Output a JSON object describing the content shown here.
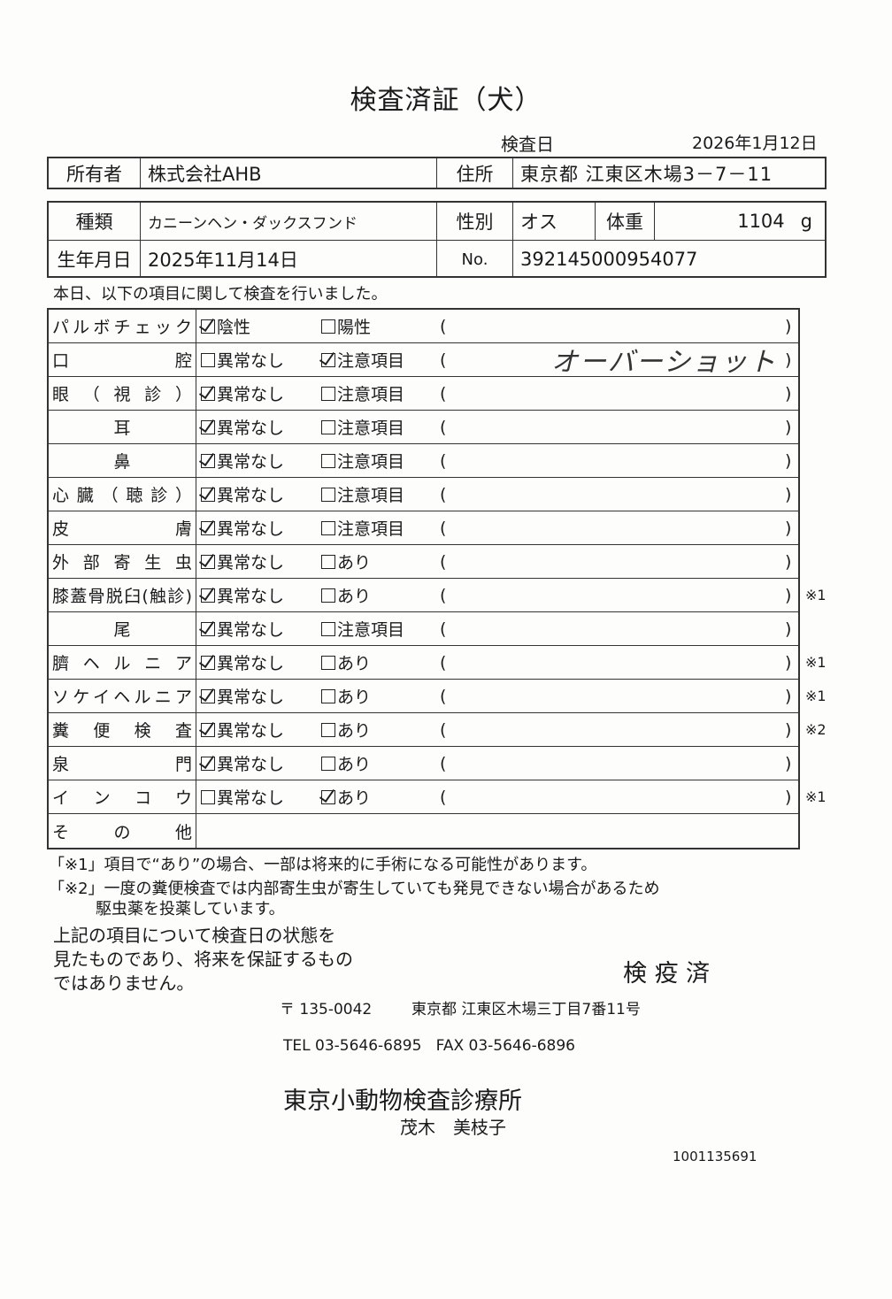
{
  "title": "検査済証（犬）",
  "exam_date_label": "検査日",
  "exam_date": "2026年1月12日",
  "owner": {
    "label": "所有者",
    "value": "株式会社AHB"
  },
  "address": {
    "label": "住所",
    "value": "東京都 江東区木場3－7－11"
  },
  "breed": {
    "label": "種類",
    "value": "カニーンヘン・ダックスフンド"
  },
  "sex": {
    "label": "性別",
    "value": "オス"
  },
  "weight": {
    "label": "体重",
    "value": "1104",
    "unit": "g"
  },
  "birth": {
    "label": "生年月日",
    "value": "2025年11月14日"
  },
  "number": {
    "label": "No.",
    "value": "392145000954077"
  },
  "intro": "本日、以下の項目に関して検査を行いました。",
  "rows": [
    {
      "label": "パルボチェック",
      "opt1": "陰性",
      "opt1_checked": true,
      "opt2": "陽性",
      "opt2_checked": false,
      "note": "",
      "remark": ""
    },
    {
      "label": "口腔",
      "opt1": "異常なし",
      "opt1_checked": false,
      "opt2": "注意項目",
      "opt2_checked": true,
      "note": "オーバーショット",
      "remark": ""
    },
    {
      "label": "眼（視診）",
      "opt1": "異常なし",
      "opt1_checked": true,
      "opt2": "注意項目",
      "opt2_checked": false,
      "note": "",
      "remark": ""
    },
    {
      "label": "耳",
      "opt1": "異常なし",
      "opt1_checked": true,
      "opt2": "注意項目",
      "opt2_checked": false,
      "note": "",
      "remark": ""
    },
    {
      "label": "鼻",
      "opt1": "異常なし",
      "opt1_checked": true,
      "opt2": "注意項目",
      "opt2_checked": false,
      "note": "",
      "remark": ""
    },
    {
      "label": "心臓（聴診）",
      "opt1": "異常なし",
      "opt1_checked": true,
      "opt2": "注意項目",
      "opt2_checked": false,
      "note": "",
      "remark": ""
    },
    {
      "label": "皮膚",
      "opt1": "異常なし",
      "opt1_checked": true,
      "opt2": "注意項目",
      "opt2_checked": false,
      "note": "",
      "remark": ""
    },
    {
      "label": "外部寄生虫",
      "opt1": "異常なし",
      "opt1_checked": true,
      "opt2": "あり",
      "opt2_checked": false,
      "note": "",
      "remark": ""
    },
    {
      "label": "膝蓋骨脱臼(触診)",
      "opt1": "異常なし",
      "opt1_checked": true,
      "opt2": "あり",
      "opt2_checked": false,
      "note": "",
      "remark": "※1"
    },
    {
      "label": "尾",
      "opt1": "異常なし",
      "opt1_checked": true,
      "opt2": "注意項目",
      "opt2_checked": false,
      "note": "",
      "remark": ""
    },
    {
      "label": "臍ヘルニア",
      "opt1": "異常なし",
      "opt1_checked": true,
      "opt2": "あり",
      "opt2_checked": false,
      "note": "",
      "remark": "※1"
    },
    {
      "label": "ソケイヘルニア",
      "opt1": "異常なし",
      "opt1_checked": true,
      "opt2": "あり",
      "opt2_checked": false,
      "note": "",
      "remark": "※1"
    },
    {
      "label": "糞便検査",
      "opt1": "異常なし",
      "opt1_checked": true,
      "opt2": "あり",
      "opt2_checked": false,
      "note": "",
      "remark": "※2"
    },
    {
      "label": "泉門",
      "opt1": "異常なし",
      "opt1_checked": true,
      "opt2": "あり",
      "opt2_checked": false,
      "note": "",
      "remark": ""
    },
    {
      "label": "インコウ",
      "opt1": "異常なし",
      "opt1_checked": false,
      "opt2": "あり",
      "opt2_checked": true,
      "note": "",
      "remark": "※1"
    },
    {
      "label": "その他"
    }
  ],
  "footnote1": "「※1」項目で“あり”の場合、一部は将来的に手術になる可能性があります。",
  "footnote2_line1": "「※2」一度の糞便検査では内部寄生虫が寄生していても発見できない場合があるため",
  "footnote2_line2": "駆虫薬を投薬しています。",
  "disclaimer": [
    "上記の項目について検査日の状態を",
    "見たものであり、将来を保証するもの",
    "ではありません。"
  ],
  "stamp": "検 疫 済",
  "postal": "〒 135-0042",
  "clinic_address": "東京都 江東区木場三丁目7番11号",
  "contact": "TEL 03-5646-6895   FAX 03-5646-6896",
  "clinic_name": "東京小動物検査診療所",
  "vet_name": "茂木　美枝子",
  "doc_number": "1001135691"
}
